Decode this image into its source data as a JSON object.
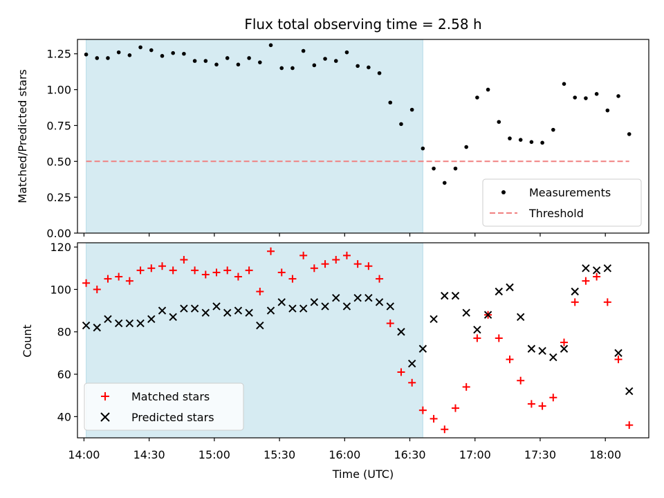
{
  "chart_data": [
    {
      "type": "scatter",
      "title": "Flux total observing time = 2.58 h",
      "xlabel": "",
      "ylabel": "Matched/Predicted stars",
      "xlim": [
        "13:57",
        "18:20"
      ],
      "ylim": [
        0,
        1.35
      ],
      "yticks": [
        0.0,
        0.25,
        0.5,
        0.75,
        1.0,
        1.25
      ],
      "ytick_labels": [
        "0.00",
        "0.25",
        "0.50",
        "0.75",
        "1.00",
        "1.25"
      ],
      "shaded_interval": [
        "14:01",
        "16:36"
      ],
      "legend_position": "lower-right",
      "series": [
        {
          "name": "Measurements",
          "marker": "dot",
          "color": "#000000",
          "x": [
            "14:01",
            "14:06",
            "14:11",
            "14:16",
            "14:21",
            "14:26",
            "14:31",
            "14:36",
            "14:41",
            "14:46",
            "14:51",
            "14:56",
            "15:01",
            "15:06",
            "15:11",
            "15:16",
            "15:21",
            "15:26",
            "15:31",
            "15:36",
            "15:41",
            "15:46",
            "15:51",
            "15:56",
            "16:01",
            "16:06",
            "16:11",
            "16:16",
            "16:21",
            "16:26",
            "16:31",
            "16:36",
            "16:41",
            "16:46",
            "16:51",
            "16:56",
            "17:01",
            "17:06",
            "17:11",
            "17:16",
            "17:21",
            "17:26",
            "17:31",
            "17:36",
            "17:41",
            "17:46",
            "17:51",
            "17:56",
            "18:01",
            "18:06",
            "18:11"
          ],
          "y": [
            1.245,
            1.22,
            1.22,
            1.26,
            1.24,
            1.295,
            1.275,
            1.235,
            1.255,
            1.25,
            1.2,
            1.2,
            1.175,
            1.22,
            1.175,
            1.22,
            1.19,
            1.31,
            1.15,
            1.15,
            1.27,
            1.17,
            1.215,
            1.2,
            1.26,
            1.165,
            1.155,
            1.115,
            0.91,
            0.76,
            0.86,
            0.59,
            0.45,
            0.35,
            0.45,
            0.6,
            0.945,
            1.0,
            0.775,
            0.66,
            0.65,
            0.635,
            0.63,
            0.72,
            1.04,
            0.945,
            0.94,
            0.97,
            0.855,
            0.955,
            0.69
          ]
        },
        {
          "name": "Threshold",
          "style": "dashed-line",
          "color": "#f08080",
          "x": [
            "14:01",
            "18:11"
          ],
          "y": [
            0.5,
            0.5
          ]
        }
      ]
    },
    {
      "type": "scatter",
      "title": "",
      "xlabel": "Time (UTC)",
      "ylabel": "Count",
      "xlim": [
        "13:57",
        "18:20"
      ],
      "ylim": [
        30,
        122
      ],
      "yticks": [
        40,
        60,
        80,
        100,
        120
      ],
      "ytick_labels": [
        "40",
        "60",
        "80",
        "100",
        "120"
      ],
      "xticks": [
        "14:00",
        "14:30",
        "15:00",
        "15:30",
        "16:00",
        "16:30",
        "17:00",
        "17:30",
        "18:00"
      ],
      "shaded_interval": [
        "14:01",
        "16:36"
      ],
      "legend_position": "lower-left",
      "series": [
        {
          "name": "Matched stars",
          "marker": "plus",
          "color": "#ff0000",
          "x": [
            "14:01",
            "14:06",
            "14:11",
            "14:16",
            "14:21",
            "14:26",
            "14:31",
            "14:36",
            "14:41",
            "14:46",
            "14:51",
            "14:56",
            "15:01",
            "15:06",
            "15:11",
            "15:16",
            "15:21",
            "15:26",
            "15:31",
            "15:36",
            "15:41",
            "15:46",
            "15:51",
            "15:56",
            "16:01",
            "16:06",
            "16:11",
            "16:16",
            "16:21",
            "16:26",
            "16:31",
            "16:36",
            "16:41",
            "16:46",
            "16:51",
            "16:56",
            "17:01",
            "17:06",
            "17:11",
            "17:16",
            "17:21",
            "17:26",
            "17:31",
            "17:36",
            "17:41",
            "17:46",
            "17:51",
            "17:56",
            "18:01",
            "18:06",
            "18:11"
          ],
          "y": [
            103,
            100,
            105,
            106,
            104,
            109,
            110,
            111,
            109,
            114,
            109,
            107,
            108,
            109,
            106,
            109,
            99,
            118,
            108,
            105,
            116,
            110,
            112,
            114,
            116,
            112,
            111,
            105,
            84,
            61,
            56,
            43,
            39,
            34,
            44,
            54,
            77,
            88,
            77,
            67,
            57,
            46,
            45,
            49,
            75,
            94,
            104,
            106,
            94,
            67,
            36
          ]
        },
        {
          "name": "Predicted stars",
          "marker": "x",
          "color": "#000000",
          "x": [
            "14:01",
            "14:06",
            "14:11",
            "14:16",
            "14:21",
            "14:26",
            "14:31",
            "14:36",
            "14:41",
            "14:46",
            "14:51",
            "14:56",
            "15:01",
            "15:06",
            "15:11",
            "15:16",
            "15:21",
            "15:26",
            "15:31",
            "15:36",
            "15:41",
            "15:46",
            "15:51",
            "15:56",
            "16:01",
            "16:06",
            "16:11",
            "16:16",
            "16:21",
            "16:26",
            "16:31",
            "16:36",
            "16:41",
            "16:46",
            "16:51",
            "16:56",
            "17:01",
            "17:06",
            "17:11",
            "17:16",
            "17:21",
            "17:26",
            "17:31",
            "17:36",
            "17:41",
            "17:46",
            "17:51",
            "17:56",
            "18:01",
            "18:06",
            "18:11"
          ],
          "y": [
            83,
            82,
            86,
            84,
            84,
            84,
            86,
            90,
            87,
            91,
            91,
            89,
            92,
            89,
            90,
            89,
            83,
            90,
            94,
            91,
            91,
            94,
            92,
            96,
            92,
            96,
            96,
            94,
            92,
            80,
            65,
            72,
            86,
            97,
            97,
            89,
            81,
            88,
            99,
            101,
            87,
            72,
            71,
            68,
            72,
            99,
            110,
            109,
            110,
            70,
            52
          ]
        }
      ]
    }
  ]
}
